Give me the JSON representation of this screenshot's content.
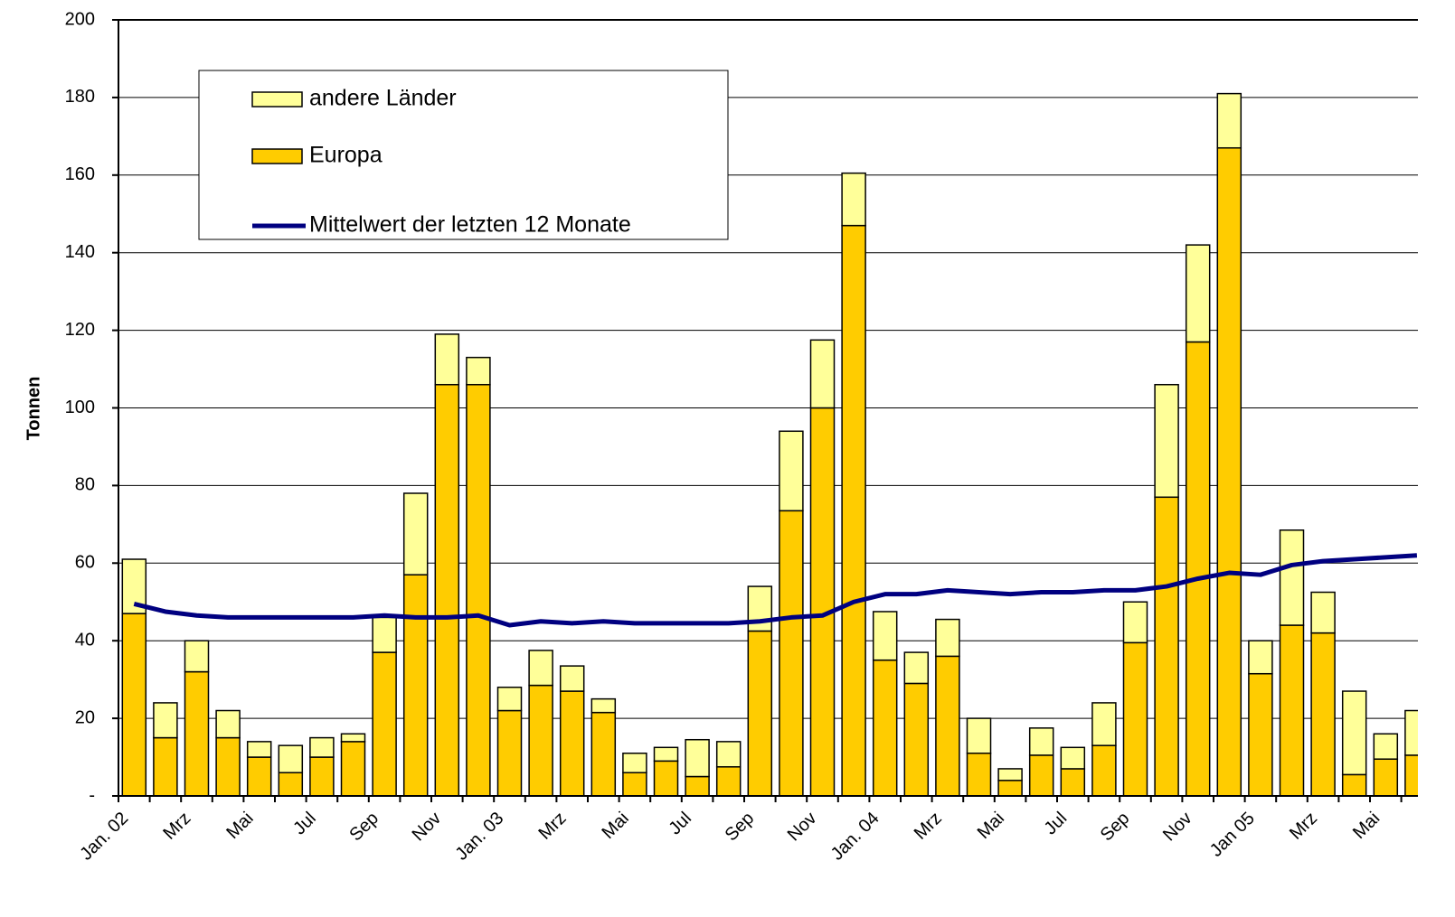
{
  "chart_data": {
    "type": "bar",
    "stacked": true,
    "y_label": "Tonnen",
    "categories": [
      "Jan. 02",
      null,
      "Mrz",
      null,
      "Mai",
      null,
      "Jul",
      null,
      "Sep",
      null,
      "Nov",
      null,
      "Jan. 03",
      null,
      "Mrz",
      null,
      "Mai",
      null,
      "Jul",
      null,
      "Sep",
      null,
      "Nov",
      null,
      "Jan. 04",
      null,
      "Mrz",
      null,
      "Mai",
      null,
      "Jul",
      null,
      "Sep",
      null,
      "Nov",
      null,
      "Jan 05",
      null,
      "Mrz",
      null,
      "Mai",
      null
    ],
    "series": [
      {
        "name": "Europa",
        "type": "bar",
        "color": "#ffcc00",
        "values": [
          47,
          15,
          32,
          15,
          10,
          6,
          10,
          14,
          37,
          57,
          106,
          106,
          22,
          28.5,
          27,
          21.5,
          6,
          9,
          5,
          7.5,
          42.5,
          73.5,
          100,
          147,
          35,
          29,
          36,
          11,
          4,
          10.5,
          7,
          13,
          39.5,
          77,
          117,
          167,
          31.5,
          44,
          42,
          5.5,
          9.5,
          10.5
        ]
      },
      {
        "name": "andere Länder",
        "type": "bar",
        "color": "#ffff99",
        "values": [
          14,
          9,
          8,
          7,
          4,
          7,
          5,
          2,
          9,
          21,
          13,
          7,
          6,
          9,
          6.5,
          3.5,
          5,
          3.5,
          9.5,
          6.5,
          11.5,
          20.5,
          17.5,
          13.5,
          12.5,
          8,
          9.5,
          9,
          3,
          7,
          5.5,
          11,
          10.5,
          29,
          25,
          14,
          8.5,
          24.5,
          10.5,
          21.5,
          6.5,
          11.5
        ]
      },
      {
        "name": "Mittelwert der letzten 12 Monate",
        "type": "line",
        "color": "#000080",
        "values": [
          49.5,
          47.5,
          46.5,
          46,
          46,
          46,
          46,
          46,
          46.5,
          46,
          46,
          46.5,
          44,
          45,
          44.5,
          45,
          44.5,
          44.5,
          44.5,
          44.5,
          45,
          46,
          46.5,
          50,
          52,
          52,
          53,
          52.5,
          52,
          52.5,
          52.5,
          53,
          53,
          54,
          56,
          57.5,
          57,
          59.5,
          60.5,
          61,
          61.5,
          62
        ]
      }
    ],
    "ylim": [
      0,
      200
    ],
    "yticks": [
      {
        "value": 0,
        "label": "-"
      },
      20,
      40,
      60,
      80,
      100,
      120,
      140,
      160,
      180,
      200
    ],
    "grid": true,
    "legend": "upper left"
  }
}
